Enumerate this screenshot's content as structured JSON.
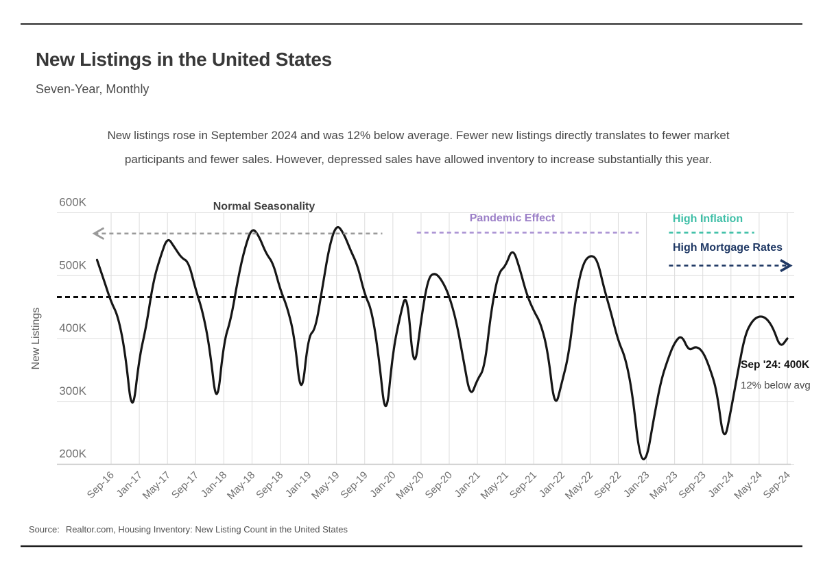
{
  "header": {
    "title": "New Listings in the United States",
    "subtitle": "Seven-Year, Monthly"
  },
  "description": {
    "line1": "New listings rose in September 2024 and was 12% below average. Fewer new listings directly translates to fewer market",
    "line2": "participants and fewer sales. However, depressed sales have allowed inventory to increase substantially this year."
  },
  "source": {
    "label": "Source:",
    "text": "Realtor.com, Housing Inventory: New Listing Count in the United States"
  },
  "colors": {
    "series": "#161616",
    "average_line": "#0a0a0a",
    "normal_seasonality": "#9a9a9a",
    "pandemic_effect": "#9b7fc7",
    "pandemic_line": "#ab93d4",
    "high_inflation": "#3fbfa7",
    "high_mortgage": "#1f3864",
    "gridline": "#dcdcdc",
    "tick_text": "#6e6e6e"
  },
  "chart_data": {
    "type": "line",
    "title": "New Listings in the United States",
    "xlabel": "",
    "ylabel": "New Listings",
    "units": "thousands of listings",
    "x_range": {
      "start": "Jul-2016",
      "end": "Sep-2024",
      "frequency": "monthly"
    },
    "x_tick_labels": [
      "Sep-16",
      "Jan-17",
      "May-17",
      "Sep-17",
      "Jan-18",
      "May-18",
      "Sep-18",
      "Jan-19",
      "May-19",
      "Sep-19",
      "Jan-20",
      "May-20",
      "Sep-20",
      "Jan-21",
      "May-21",
      "Sep-21",
      "Jan-22",
      "May-22",
      "Sep-22",
      "Jan-23",
      "May-23",
      "Sep-23",
      "Jan-24",
      "May-24",
      "Sep-24"
    ],
    "y_ticks": [
      200,
      300,
      400,
      500,
      600
    ],
    "y_tick_labels": [
      "200K",
      "300K",
      "400K",
      "500K",
      "600K"
    ],
    "ylim": [
      200,
      600
    ],
    "grid": true,
    "values": [
      525,
      492,
      458,
      435,
      378,
      273,
      370,
      420,
      492,
      530,
      562,
      545,
      528,
      522,
      478,
      443,
      385,
      286,
      395,
      430,
      495,
      545,
      577,
      563,
      535,
      520,
      478,
      450,
      405,
      300,
      404,
      414,
      482,
      548,
      582,
      568,
      540,
      516,
      470,
      445,
      372,
      265,
      379,
      435,
      478,
      340,
      430,
      497,
      505,
      492,
      468,
      428,
      368,
      305,
      335,
      352,
      448,
      505,
      515,
      545,
      512,
      470,
      444,
      424,
      380,
      286,
      330,
      376,
      470,
      520,
      533,
      527,
      479,
      440,
      396,
      370,
      314,
      212,
      205,
      270,
      330,
      366,
      394,
      406,
      380,
      388,
      380,
      353,
      317,
      231,
      286,
      348,
      406,
      428,
      436,
      433,
      417,
      385,
      400
    ],
    "average_line": {
      "estimated_value_k": 466,
      "style": "dashed-black"
    },
    "annotations": [
      {
        "id": "normal-seasonality",
        "label": "Normal Seasonality",
        "text_color": "#3f3f3f",
        "line_color": "#9a9a9a",
        "line_value": 567,
        "from_month": -0.4,
        "to_month": 40.5,
        "arrow": "left"
      },
      {
        "id": "pandemic-effect",
        "label": "Pandemic Effect",
        "text_color": "#9b7fc7",
        "line_color": "#ab93d4",
        "line_value": 568.5,
        "from_month": 45.4,
        "to_month": 76.9,
        "arrow": "none"
      },
      {
        "id": "high-inflation",
        "label": "High Inflation",
        "text_color": "#3fbfa7",
        "line_color": "#3fbfa7",
        "line_value": 568.5,
        "from_month": 81.2,
        "to_month": 93.3,
        "arrow": "none"
      },
      {
        "id": "high-mortgage-rates",
        "label": "High Mortgage Rates",
        "text_color": "#1f3864",
        "line_color": "#1f3864",
        "line_value": 516,
        "from_month": 81.2,
        "to_month": 98.4,
        "arrow": "right"
      }
    ],
    "callout": {
      "line1": "Sep '24: 400K",
      "line2": "12% below avg"
    }
  }
}
